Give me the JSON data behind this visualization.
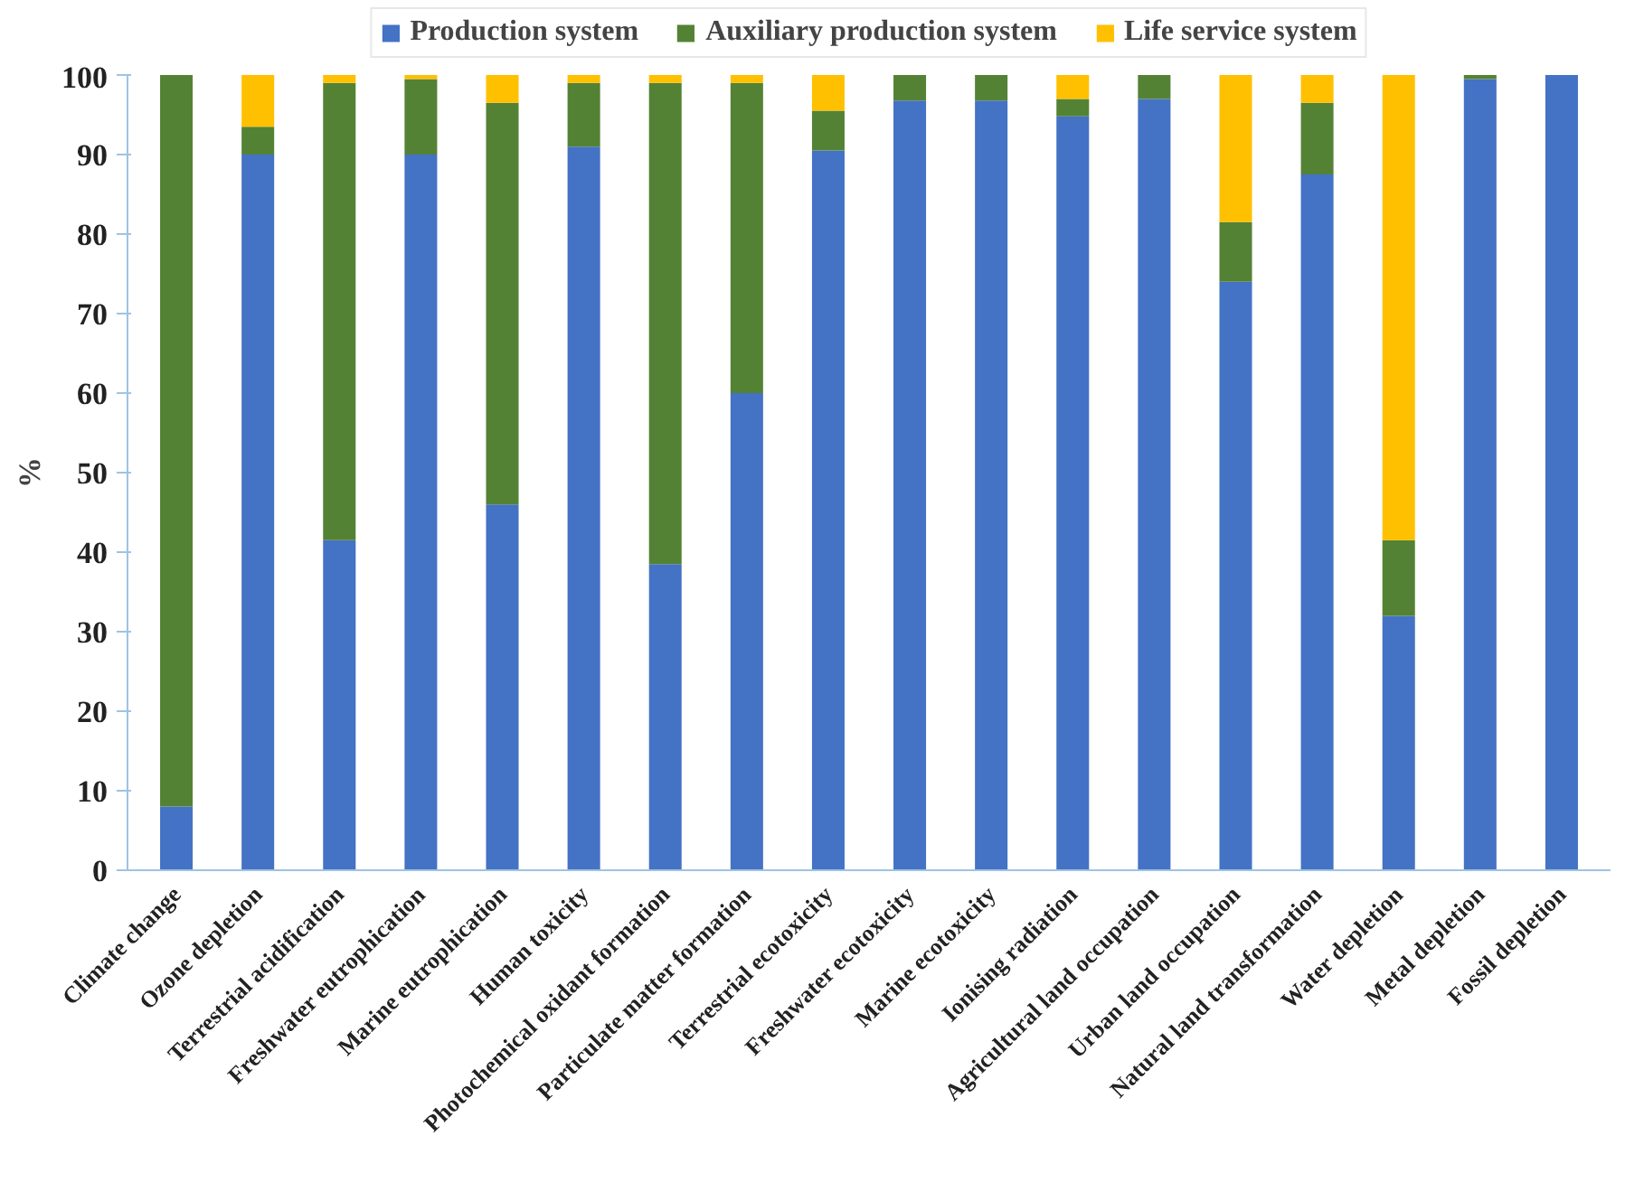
{
  "chart_data": {
    "type": "bar",
    "stacked": true,
    "ylabel": "%",
    "categories": [
      "Climate change",
      "Ozone depletion",
      "Terrestrial acidification",
      "Freshwater eutrophication",
      "Marine eutrophication",
      "Human toxicity",
      "Photochemical oxidant formation",
      "Particulate matter formation",
      "Terrestrial ecotoxicity",
      "Freshwater ecotoxicity",
      "Marine ecotoxicity",
      "Ionising radiation",
      "Agricultural land occupation",
      "Urban land occupation",
      "Natural land transformation",
      "Water depletion",
      "Metal depletion",
      "Fossil depletion"
    ],
    "series": [
      {
        "name": "Production system",
        "color": "#4472c4",
        "values": [
          8,
          90,
          41.5,
          90,
          46,
          91,
          38.5,
          60,
          90.5,
          96.8,
          96.8,
          94.8,
          97,
          74,
          87.5,
          32,
          99.5,
          100
        ]
      },
      {
        "name": "Auxiliary production system",
        "color": "#548235",
        "values": [
          92,
          3.5,
          57.5,
          9.5,
          50.5,
          8,
          60.5,
          39,
          5,
          3.2,
          3.2,
          2.2,
          3,
          7.5,
          9,
          9.5,
          0.5,
          0
        ]
      },
      {
        "name": "Life service system",
        "color": "#ffc000",
        "values": [
          0,
          6.5,
          1,
          0.5,
          3.5,
          1,
          1,
          1,
          4.5,
          0,
          0,
          3,
          0,
          18.5,
          3.5,
          58.5,
          0,
          0
        ]
      }
    ],
    "ylim": [
      0,
      100
    ],
    "yticks": [
      0,
      10,
      20,
      30,
      40,
      50,
      60,
      70,
      80,
      90,
      100
    ],
    "grid": false,
    "legend": "top"
  }
}
